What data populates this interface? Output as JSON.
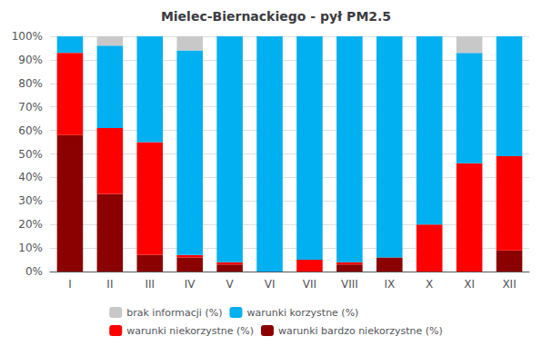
{
  "chart_data": {
    "type": "bar",
    "title": "Mielec-Biernackiego - pył PM2.5",
    "categories": [
      "I",
      "II",
      "III",
      "IV",
      "V",
      "VI",
      "VII",
      "VIII",
      "IX",
      "X",
      "XI",
      "XII"
    ],
    "series": [
      {
        "name": "warunki bardzo niekorzystne (%)",
        "color": "#8b0000",
        "values": [
          58,
          33,
          7,
          6,
          3,
          0,
          0,
          3,
          6,
          0,
          0,
          9
        ]
      },
      {
        "name": "warunki niekorzystne (%)",
        "color": "#ff0000",
        "values": [
          35,
          28,
          48,
          1,
          1,
          0,
          5,
          1,
          0,
          20,
          46,
          40
        ]
      },
      {
        "name": "warunki korzystne (%)",
        "color": "#00b0f0",
        "values": [
          7,
          35,
          45,
          87,
          96,
          100,
          95,
          96,
          94,
          80,
          47,
          51
        ]
      },
      {
        "name": "brak informacji (%)",
        "color": "#c8c8c8",
        "values": [
          0,
          4,
          0,
          6,
          0,
          0,
          0,
          0,
          0,
          0,
          7,
          0
        ]
      }
    ],
    "stacked": true,
    "ylim": [
      0,
      100
    ],
    "yticks": [
      {
        "value": 0,
        "label": "0%"
      },
      {
        "value": 10,
        "label": "10%"
      },
      {
        "value": 20,
        "label": "20%"
      },
      {
        "value": 30,
        "label": "30%"
      },
      {
        "value": 40,
        "label": "40%"
      },
      {
        "value": 50,
        "label": "50%"
      },
      {
        "value": 60,
        "label": "60%"
      },
      {
        "value": 70,
        "label": "70%"
      },
      {
        "value": 80,
        "label": "80%"
      },
      {
        "value": 90,
        "label": "90%"
      },
      {
        "value": 100,
        "label": "100%"
      }
    ],
    "grid": true,
    "legend": "bottom"
  }
}
